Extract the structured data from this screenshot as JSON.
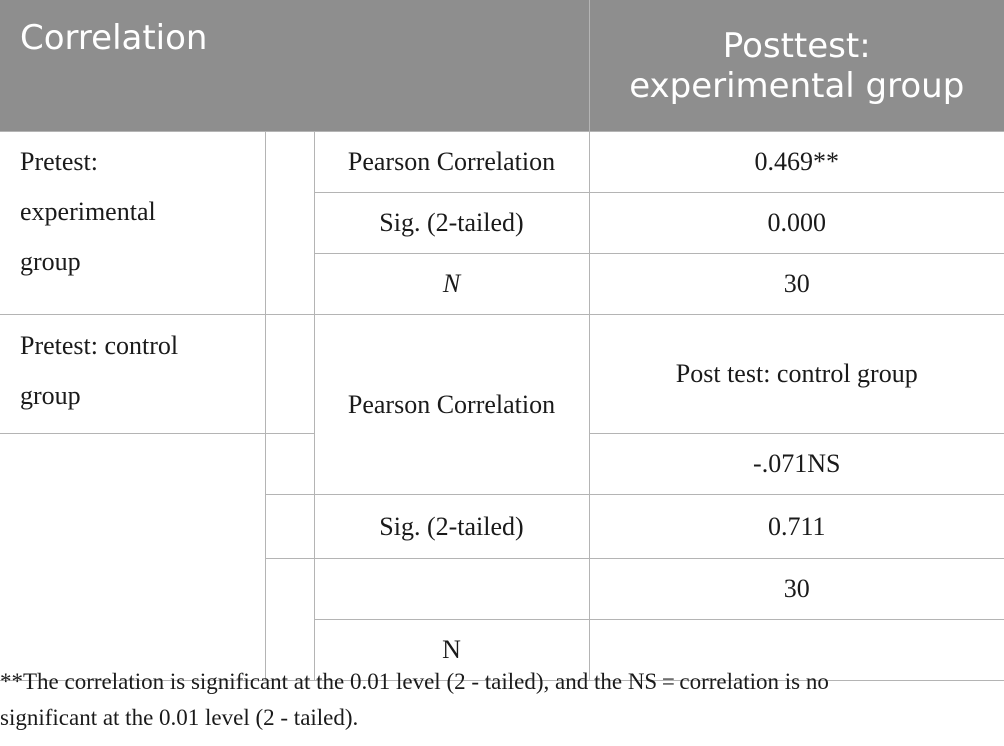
{
  "table": {
    "header": {
      "left": "Correlation",
      "right_line1": "Posttest:",
      "right_line2": "experimental group"
    },
    "experimental": {
      "label_lines": [
        "Pretest:",
        "experimental",
        "group"
      ],
      "stats": [
        {
          "stat": "Pearson Correlation",
          "value": "0.469**"
        },
        {
          "stat": "Sig. (2-tailed)",
          "value": "0.000"
        },
        {
          "stat": "N",
          "value": "30"
        }
      ]
    },
    "control": {
      "label_lines": [
        "Pretest: control",
        "group"
      ],
      "subheader": "Post test: control group",
      "pearson_label": "Pearson Correlation",
      "pearson_value": "-.071NS",
      "sig_label": "Sig. (2-tailed)",
      "sig_value": "0.711",
      "n_value": "30",
      "n_label": "N"
    }
  },
  "footnote": {
    "line1": "**The correlation is significant at the 0.01 level (2 - tailed), and the NS = correlation is no",
    "line2": "significant at the 0.01 level (2 - tailed)."
  }
}
